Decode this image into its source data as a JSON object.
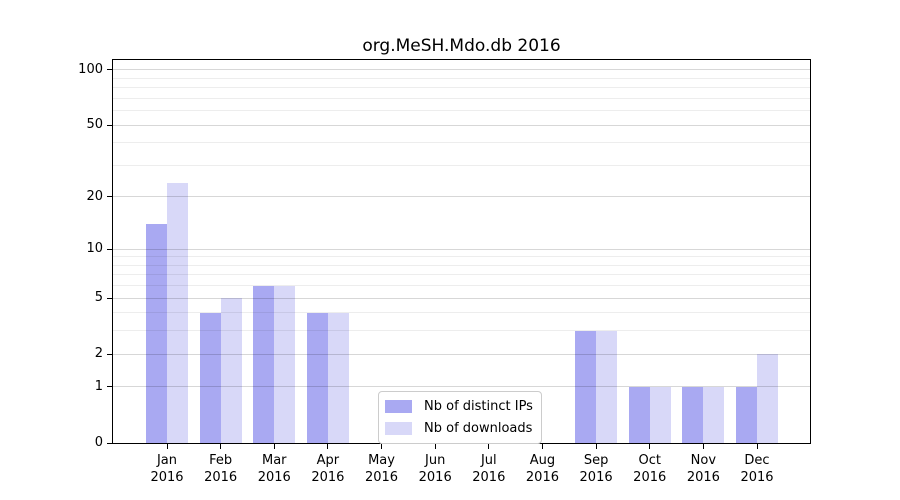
{
  "chart_data": {
    "type": "bar",
    "title": "org.MeSH.Mdo.db 2016",
    "categories": [
      "Jan",
      "Feb",
      "Mar",
      "Apr",
      "May",
      "Jun",
      "Jul",
      "Aug",
      "Sep",
      "Oct",
      "Nov",
      "Dec"
    ],
    "category_year": "2016",
    "series": [
      {
        "name": "Nb of distinct IPs",
        "color": "#a9a9f2",
        "values": [
          14,
          4,
          6,
          4,
          0,
          0,
          0,
          0,
          3,
          1,
          1,
          1
        ]
      },
      {
        "name": "Nb of downloads",
        "color": "#d8d8f8",
        "values": [
          24,
          5,
          6,
          4,
          0,
          0,
          0,
          0,
          3,
          1,
          1,
          2
        ]
      }
    ],
    "xlabel": "",
    "ylabel": "",
    "y_axis": {
      "scale": "log1p",
      "major_ticks": [
        0,
        1,
        2,
        5,
        10,
        20,
        50,
        100
      ],
      "minor_ticks": [
        3,
        4,
        6,
        7,
        8,
        9,
        30,
        40,
        60,
        70,
        80,
        90
      ],
      "ylim": [
        0,
        113
      ]
    },
    "legend": {
      "position": "bottom-center"
    },
    "grid": true
  }
}
